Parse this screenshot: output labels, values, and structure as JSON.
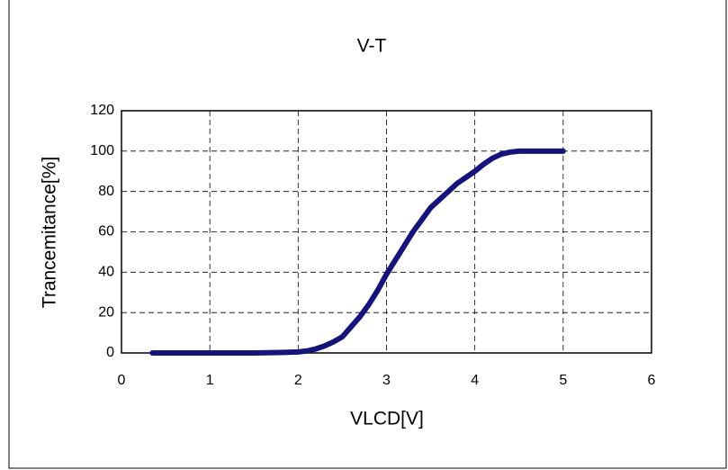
{
  "chart_data": {
    "type": "line",
    "title": "V-T",
    "x_label": "VLCD[V]",
    "y_label": "Trancemitance[%]",
    "xlim": [
      0,
      6
    ],
    "xticks": [
      0,
      1,
      2,
      3,
      4,
      5,
      6
    ],
    "ylim": [
      0,
      120
    ],
    "yticks": [
      0,
      20,
      40,
      60,
      80,
      100,
      120
    ],
    "grid": true,
    "series": [
      {
        "name": "V-T",
        "color": "#14147a",
        "x": [
          0.35,
          1.0,
          1.5,
          1.8,
          2.0,
          2.1,
          2.2,
          2.3,
          2.4,
          2.5,
          2.6,
          2.7,
          2.8,
          2.9,
          3.0,
          3.1,
          3.2,
          3.3,
          3.4,
          3.5,
          3.6,
          3.7,
          3.8,
          3.9,
          4.0,
          4.1,
          4.2,
          4.3,
          4.4,
          4.5,
          4.7,
          5.0
        ],
        "values": [
          0,
          0,
          0,
          0.2,
          0.5,
          1,
          2,
          3.5,
          5.5,
          8,
          13,
          18,
          24,
          31,
          39,
          46,
          53,
          60,
          66,
          72,
          76,
          80,
          84,
          87,
          90,
          93.5,
          96.5,
          98.5,
          99.5,
          100,
          100,
          100
        ]
      }
    ]
  }
}
